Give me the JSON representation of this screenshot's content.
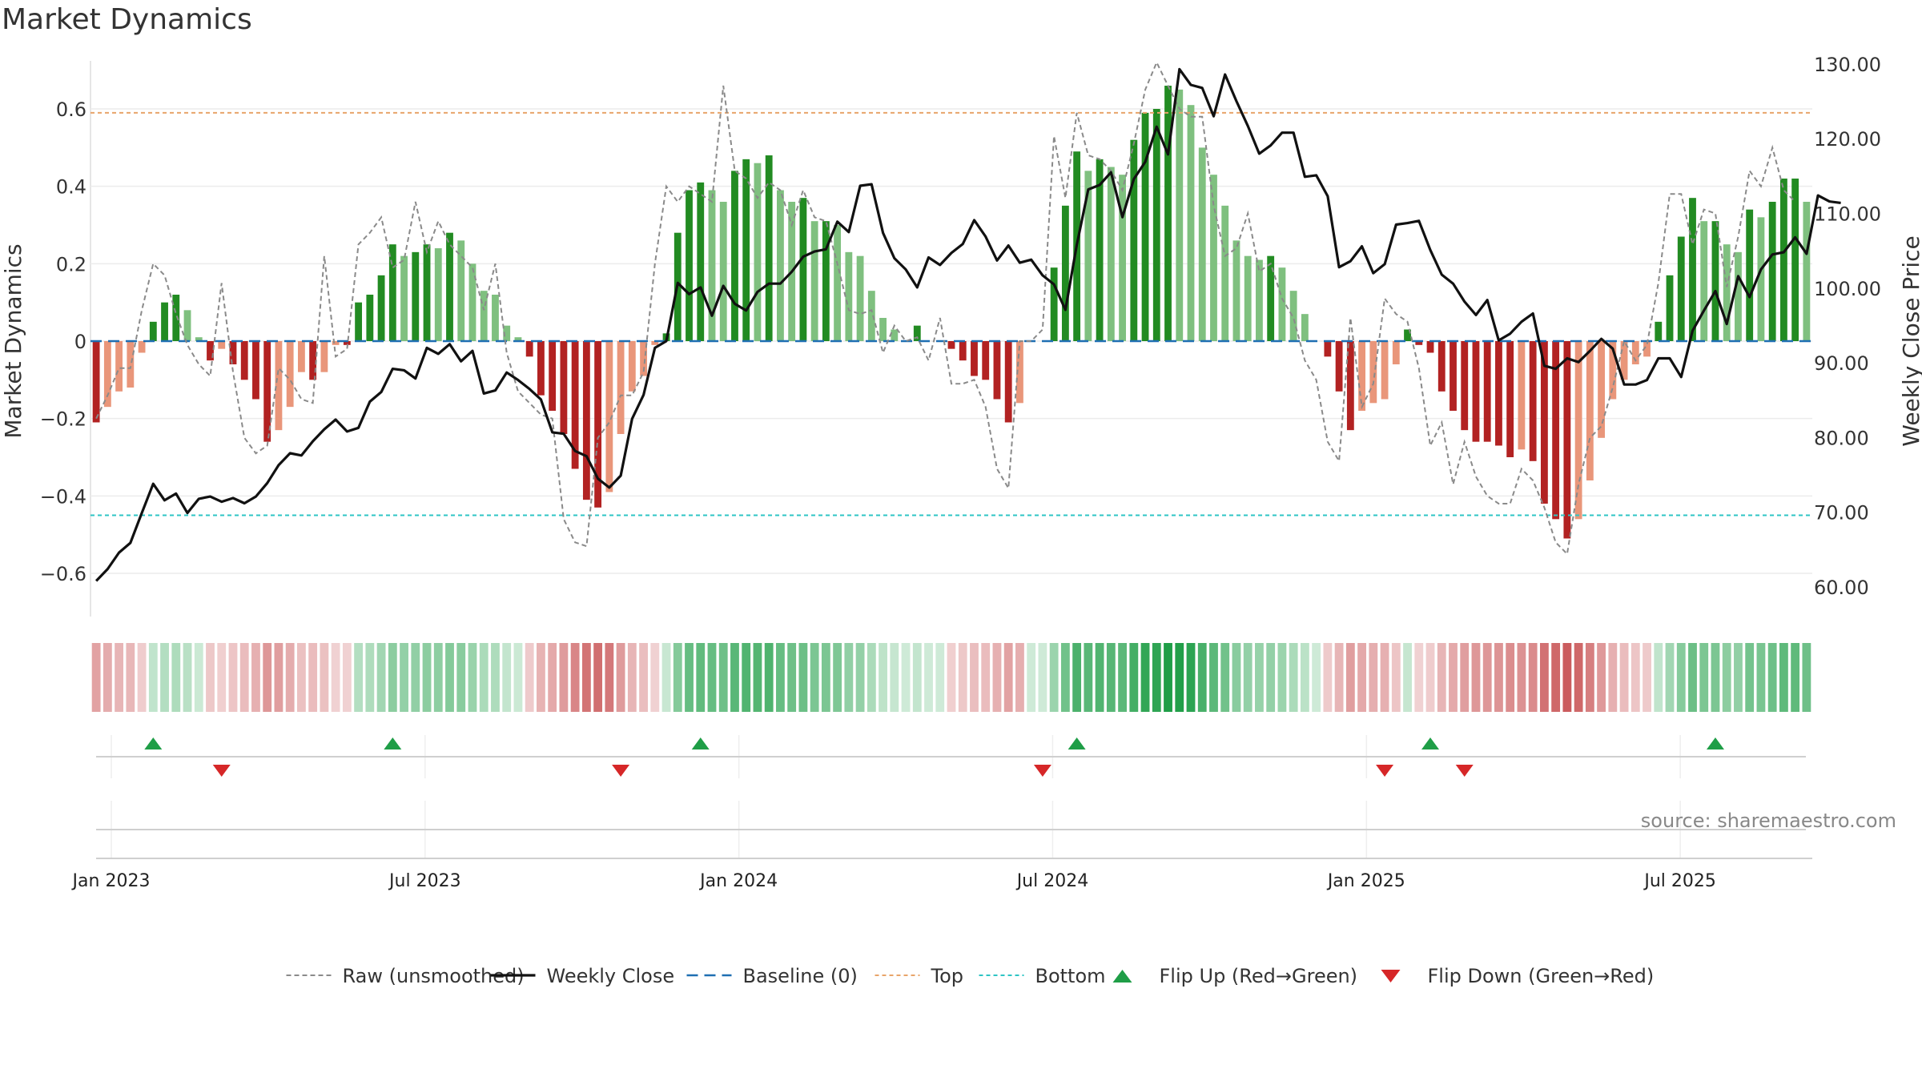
{
  "title": "Market Dynamics",
  "source": "source: sharemaestro.com",
  "colors": {
    "pos_strong": "#228B22",
    "pos_light": "#7fc07f",
    "neg_strong": "#b22222",
    "neg_light": "#e9967a",
    "raw": "#8a8a8a",
    "close": "#111111",
    "baseline": "#1f6fb2",
    "top": "#e8a46a",
    "bottom": "#2ec4c4",
    "flip_up": "#1f9e47",
    "flip_down": "#d62728"
  },
  "chart_data": {
    "type": "bar",
    "title": "Market Dynamics",
    "ylabel": "Market Dynamics",
    "ylabel_right": "Weekly Close Price",
    "ylim": [
      -0.72,
      0.72
    ],
    "ylim_right": [
      56,
      131
    ],
    "yticks": [
      "0.6",
      "0.4",
      "0.2",
      "0",
      "−0.2",
      "−0.4",
      "−0.6"
    ],
    "yticks_values": [
      0.6,
      0.4,
      0.2,
      0,
      -0.2,
      -0.4,
      -0.6
    ],
    "yticks_right": [
      "130.00",
      "120.00",
      "110.00",
      "100.00",
      "90.00",
      "80.00",
      "70.00",
      "60.00"
    ],
    "yticks_right_values": [
      130,
      120,
      110,
      100,
      90,
      80,
      70,
      60
    ],
    "xticks": [
      "Jan 2023",
      "Jul 2023",
      "Jan 2024",
      "Jul 2024",
      "Jan 2025",
      "Jul 2025"
    ],
    "xticks_weeks": [
      1,
      27,
      53,
      79,
      105,
      131
    ],
    "top_line": 0.59,
    "bottom_line": -0.45,
    "legend": [
      {
        "label": "Raw (unsmoothed)",
        "style": "raw"
      },
      {
        "label": "Weekly Close",
        "style": "close"
      },
      {
        "label": "Baseline (0)",
        "style": "baseline"
      },
      {
        "label": "Top",
        "style": "top"
      },
      {
        "label": "Bottom",
        "style": "bottom"
      },
      {
        "label": "Flip Up (Red→Green)",
        "style": "flip_up"
      },
      {
        "label": "Flip Down (Green→Red)",
        "style": "flip_down"
      }
    ],
    "legend_position": "bottom",
    "series": [
      {
        "name": "Market Dynamics",
        "kind": "bar",
        "values": [
          -0.21,
          -0.17,
          -0.13,
          -0.12,
          -0.03,
          0.05,
          0.1,
          0.12,
          0.08,
          0.01,
          -0.05,
          -0.02,
          -0.06,
          -0.1,
          -0.15,
          -0.26,
          -0.23,
          -0.17,
          -0.08,
          -0.1,
          -0.08,
          -0.01,
          -0.01,
          0.1,
          0.12,
          0.17,
          0.25,
          0.22,
          0.23,
          0.25,
          0.24,
          0.28,
          0.26,
          0.2,
          0.13,
          0.12,
          0.04,
          0.01,
          -0.04,
          -0.14,
          -0.18,
          -0.24,
          -0.33,
          -0.41,
          -0.43,
          -0.39,
          -0.24,
          -0.13,
          -0.09,
          -0.01,
          0.02,
          0.28,
          0.39,
          0.41,
          0.39,
          0.36,
          0.44,
          0.47,
          0.46,
          0.48,
          0.39,
          0.36,
          0.37,
          0.31,
          0.31,
          0.3,
          0.23,
          0.22,
          0.13,
          0.06,
          0.03,
          0.0,
          0.04,
          0.0,
          0.0,
          -0.02,
          -0.05,
          -0.09,
          -0.1,
          -0.15,
          -0.21,
          -0.16,
          0.0,
          0.0,
          0.19,
          0.35,
          0.49,
          0.44,
          0.47,
          0.45,
          0.43,
          0.52,
          0.59,
          0.6,
          0.66,
          0.65,
          0.61,
          0.5,
          0.43,
          0.35,
          0.26,
          0.22,
          0.21,
          0.22,
          0.19,
          0.13,
          0.07,
          0.0,
          -0.04,
          -0.13,
          -0.23,
          -0.18,
          -0.16,
          -0.15,
          -0.06,
          0.03,
          -0.01,
          -0.03,
          -0.13,
          -0.18,
          -0.23,
          -0.26,
          -0.26,
          -0.27,
          -0.3,
          -0.28,
          -0.31,
          -0.42,
          -0.46,
          -0.51,
          -0.46,
          -0.36,
          -0.25,
          -0.15,
          -0.1,
          -0.06,
          -0.04,
          0.05,
          0.17,
          0.27,
          0.37,
          0.31,
          0.31,
          0.25,
          0.23,
          0.34,
          0.32,
          0.36,
          0.42,
          0.42,
          0.36
        ]
      },
      {
        "name": "Raw (unsmoothed)",
        "kind": "line",
        "values": [
          -0.2,
          -0.14,
          -0.07,
          -0.07,
          0.08,
          0.2,
          0.17,
          0.07,
          -0.01,
          -0.06,
          -0.09,
          0.15,
          -0.08,
          -0.25,
          -0.29,
          -0.27,
          -0.07,
          -0.1,
          -0.15,
          -0.16,
          0.22,
          -0.04,
          -0.02,
          0.25,
          0.28,
          0.32,
          0.19,
          0.21,
          0.36,
          0.23,
          0.31,
          0.25,
          0.22,
          0.19,
          0.08,
          0.2,
          -0.03,
          -0.13,
          -0.16,
          -0.19,
          -0.2,
          -0.46,
          -0.52,
          -0.53,
          -0.25,
          -0.21,
          -0.14,
          -0.14,
          -0.08,
          0.2,
          0.4,
          0.36,
          0.4,
          0.38,
          0.36,
          0.66,
          0.44,
          0.42,
          0.37,
          0.41,
          0.39,
          0.3,
          0.39,
          0.32,
          0.31,
          0.2,
          0.08,
          0.07,
          0.08,
          -0.03,
          0.04,
          0.0,
          0.01,
          -0.05,
          0.06,
          -0.11,
          -0.11,
          -0.1,
          -0.17,
          -0.33,
          -0.38,
          0.0,
          0.0,
          0.03,
          0.53,
          0.37,
          0.59,
          0.48,
          0.47,
          0.44,
          0.39,
          0.51,
          0.65,
          0.72,
          0.66,
          0.6,
          0.58,
          0.58,
          0.35,
          0.22,
          0.24,
          0.33,
          0.18,
          0.2,
          0.11,
          0.06,
          -0.05,
          -0.1,
          -0.26,
          -0.31,
          0.06,
          -0.17,
          -0.11,
          0.11,
          0.07,
          0.05,
          -0.07,
          -0.27,
          -0.21,
          -0.37,
          -0.26,
          -0.35,
          -0.4,
          -0.42,
          -0.42,
          -0.33,
          -0.36,
          -0.43,
          -0.52,
          -0.55,
          -0.37,
          -0.25,
          -0.22,
          -0.12,
          0.0,
          -0.05,
          -0.01,
          0.15,
          0.38,
          0.38,
          0.25,
          0.34,
          0.33,
          0.14,
          0.27,
          0.44,
          0.4,
          0.5,
          0.39,
          0.36
        ]
      },
      {
        "name": "Weekly Close",
        "kind": "line",
        "axis": "right",
        "values": [
          60.8,
          62.4,
          64.6,
          65.9,
          69.9,
          73.8,
          71.6,
          72.5,
          69.9,
          71.8,
          72.1,
          71.4,
          71.9,
          71.2,
          72.1,
          73.9,
          76.3,
          77.9,
          77.6,
          79.5,
          81.1,
          82.4,
          80.8,
          81.3,
          84.8,
          86.1,
          89.2,
          89.0,
          87.9,
          92.0,
          91.2,
          92.5,
          90.2,
          91.6,
          85.9,
          86.3,
          88.7,
          87.7,
          86.5,
          85.1,
          80.7,
          80.5,
          78.2,
          77.5,
          74.5,
          73.3,
          74.9,
          82.5,
          85.7,
          92.0,
          92.9,
          100.7,
          99.2,
          100.1,
          96.3,
          100.3,
          97.9,
          97.0,
          99.5,
          100.6,
          100.6,
          102.2,
          104.2,
          104.9,
          105.2,
          108.9,
          107.5,
          113.7,
          113.9,
          107.4,
          104.0,
          102.5,
          100.1,
          104.1,
          103.1,
          104.7,
          105.9,
          109.1,
          106.9,
          103.7,
          105.7,
          103.4,
          103.8,
          101.7,
          100.5,
          97.1,
          105.8,
          113.2,
          113.8,
          115.5,
          109.5,
          114.6,
          116.9,
          121.6,
          117.9,
          129.3,
          127.2,
          126.8,
          123.0,
          128.6,
          125.0,
          121.7,
          118.0,
          119.1,
          120.8,
          120.8,
          114.9,
          115.1,
          112.3,
          102.8,
          103.6,
          105.6,
          102.0,
          103.2,
          108.5,
          108.7,
          109.0,
          105.1,
          101.8,
          100.6,
          98.2,
          96.4,
          98.4,
          93.0,
          93.9,
          95.5,
          96.6,
          89.6,
          89.2,
          90.6,
          90.1,
          91.6,
          93.2,
          91.9,
          87.1,
          87.1,
          87.7,
          90.6,
          90.6,
          88.1,
          94.3,
          97.0,
          99.6,
          95.2,
          101.6,
          98.8,
          102.5,
          104.5,
          104.8,
          106.8,
          104.6,
          112.4,
          111.6,
          111.4
        ]
      }
    ],
    "flip_up_weeks": [
      5,
      26,
      53,
      86,
      117,
      142
    ],
    "flip_down_weeks": [
      11,
      46,
      83,
      113,
      120
    ],
    "signal_intensity": [
      -0.21,
      -0.17,
      -0.13,
      -0.12,
      -0.03,
      0.05,
      0.1,
      0.12,
      0.08,
      0.01,
      -0.05,
      -0.02,
      -0.06,
      -0.1,
      -0.15,
      -0.26,
      -0.23,
      -0.17,
      -0.08,
      -0.1,
      -0.08,
      -0.01,
      -0.01,
      0.1,
      0.12,
      0.17,
      0.25,
      0.22,
      0.23,
      0.25,
      0.24,
      0.28,
      0.26,
      0.2,
      0.13,
      0.12,
      0.04,
      0.01,
      -0.04,
      -0.14,
      -0.18,
      -0.24,
      -0.33,
      -0.41,
      -0.43,
      -0.39,
      -0.24,
      -0.13,
      -0.09,
      -0.01,
      0.02,
      0.28,
      0.39,
      0.41,
      0.39,
      0.36,
      0.44,
      0.47,
      0.46,
      0.48,
      0.39,
      0.36,
      0.37,
      0.31,
      0.31,
      0.3,
      0.23,
      0.22,
      0.13,
      0.06,
      0.03,
      0.0,
      0.04,
      0.0,
      0.0,
      -0.02,
      -0.05,
      -0.09,
      -0.1,
      -0.15,
      -0.21,
      -0.16,
      0.0,
      0.0,
      0.19,
      0.35,
      0.49,
      0.44,
      0.47,
      0.45,
      0.43,
      0.52,
      0.59,
      0.6,
      0.66,
      0.65,
      0.61,
      0.5,
      0.43,
      0.35,
      0.26,
      0.22,
      0.21,
      0.22,
      0.19,
      0.13,
      0.07,
      0.0,
      -0.04,
      -0.13,
      -0.23,
      -0.18,
      -0.16,
      -0.15,
      -0.06,
      0.03,
      -0.01,
      -0.03,
      -0.13,
      -0.18,
      -0.23,
      -0.26,
      -0.26,
      -0.27,
      -0.3,
      -0.28,
      -0.31,
      -0.42,
      -0.46,
      -0.51,
      -0.46,
      -0.36,
      -0.25,
      -0.15,
      -0.1,
      -0.06,
      -0.04,
      0.05,
      0.17,
      0.27,
      0.37,
      0.31,
      0.31,
      0.25,
      0.23,
      0.34,
      0.32,
      0.36,
      0.42,
      0.42,
      0.36
    ]
  }
}
